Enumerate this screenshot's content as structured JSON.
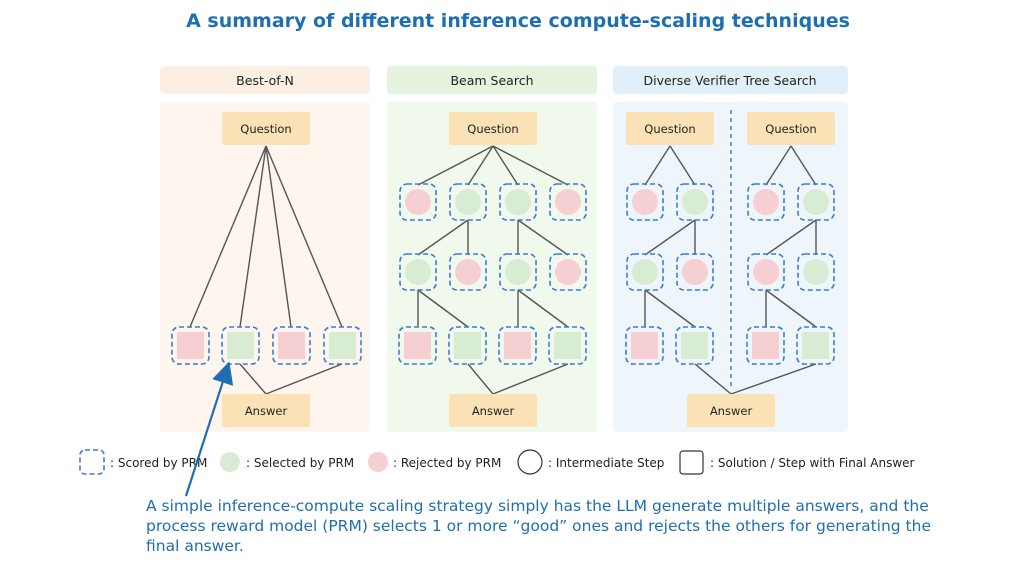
{
  "title": "A summary of different inference compute-scaling techniques",
  "panels": [
    {
      "label": "Best-of-N",
      "question": "Question",
      "answer": "Answer"
    },
    {
      "label": "Beam Search",
      "question": "Question",
      "answer": "Answer"
    },
    {
      "label": "Diverse Verifier Tree Search",
      "question": "Question",
      "question_2": "Question",
      "answer": "Answer"
    }
  ],
  "legend": {
    "scored": ": Scored by PRM",
    "selected": ": Selected by PRM",
    "rejected": ": Rejected by PRM",
    "intermediate": ": Intermediate Step",
    "solution": ": Solution / Step with Final Answer"
  },
  "caption": "A simple inference-compute scaling strategy simply  has the LLM generate multiple answers, and the process reward model (PRM) selects 1 or more “good” ones and rejects the others for generating the final answer.",
  "colors": {
    "title": "#1f6fb0",
    "selected": "#d8ebd3",
    "rejected": "#f6cfd2",
    "box": "#fbe2b6",
    "dashed": "#3d7bd6",
    "panel1_bg": "#fdf5ee",
    "panel2_bg": "#f1f9ec",
    "panel3_bg": "#eef6fb",
    "arrow": "#1f6fb0"
  }
}
